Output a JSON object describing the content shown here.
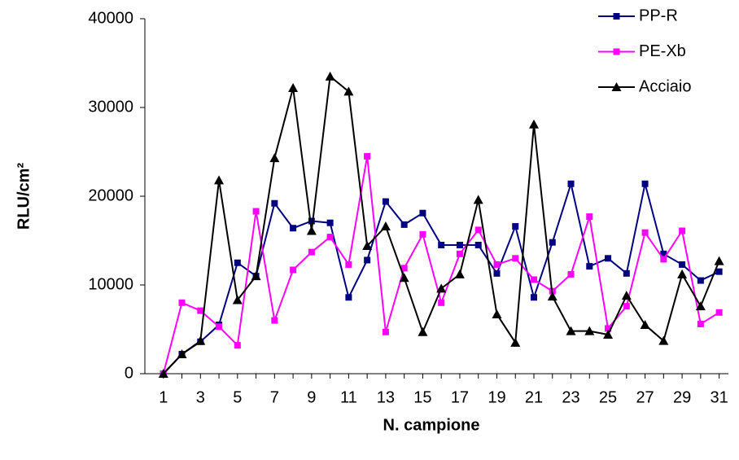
{
  "chart_data": {
    "type": "line",
    "x_label": "N. campione",
    "y_label": "RLU/cm²",
    "x": [
      1,
      2,
      3,
      4,
      5,
      6,
      7,
      8,
      9,
      10,
      11,
      12,
      13,
      14,
      15,
      16,
      17,
      18,
      19,
      20,
      21,
      22,
      23,
      24,
      25,
      26,
      27,
      28,
      29,
      30,
      31
    ],
    "xlim": [
      0,
      31.5
    ],
    "xticks": [
      1,
      3,
      5,
      7,
      9,
      11,
      13,
      15,
      17,
      19,
      21,
      23,
      25,
      27,
      29,
      31
    ],
    "ylim": [
      0,
      40000
    ],
    "yticks": [
      0,
      10000,
      20000,
      30000,
      40000
    ],
    "legend": "top-right",
    "series": [
      {
        "name": "PP-R",
        "color": "#000080",
        "marker": "square",
        "values": [
          0,
          2200,
          3600,
          5500,
          12500,
          11000,
          19200,
          16400,
          17200,
          17000,
          8600,
          12800,
          19400,
          16800,
          18100,
          14500,
          14500,
          14500,
          11300,
          16600,
          8600,
          14800,
          21400,
          12100,
          13000,
          11300,
          21400,
          13500,
          12300,
          10500,
          11500
        ]
      },
      {
        "name": "PE-Xb",
        "color": "#ff00ff",
        "marker": "square",
        "values": [
          0,
          8000,
          7100,
          5300,
          3200,
          18300,
          6000,
          11700,
          13700,
          15400,
          12300,
          24500,
          4700,
          11900,
          15700,
          8000,
          13500,
          16200,
          12300,
          13000,
          10600,
          9300,
          11200,
          17700,
          5100,
          7600,
          15900,
          12900,
          16100,
          5600,
          6900
        ]
      },
      {
        "name": "Acciaio",
        "color": "#000000",
        "marker": "triangle",
        "values": [
          0,
          2200,
          3700,
          21800,
          8300,
          11000,
          24300,
          32200,
          16100,
          33500,
          31800,
          14400,
          16600,
          10800,
          4700,
          9600,
          11200,
          19600,
          6700,
          3500,
          28100,
          8700,
          4800,
          4800,
          4400,
          8800,
          5500,
          3700,
          11200,
          7600,
          12700
        ]
      }
    ]
  }
}
